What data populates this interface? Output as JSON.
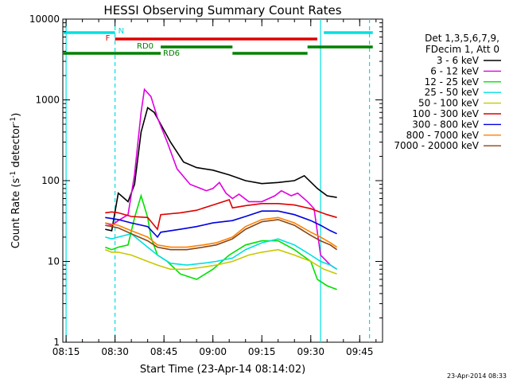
{
  "chart_data": {
    "type": "line",
    "title": "HESSI Observing Summary Count Rates",
    "xlabel": "Start Time (23-Apr-14 08:14:02)",
    "ylabel_main": "Count Rate (s",
    "ylabel_sup1": "-1",
    "ylabel_mid": " detector",
    "ylabel_sup2": "-1",
    "ylabel_end": ")",
    "yscale": "log",
    "ylim": [
      1,
      10000
    ],
    "xlim": [
      "08:14",
      "09:52"
    ],
    "x_ticks": [
      "08:15",
      "08:30",
      "08:45",
      "09:00",
      "09:15",
      "09:30",
      "09:45"
    ],
    "y_ticks": [
      "1",
      "10",
      "100",
      "1000",
      "10000"
    ],
    "footer": "23-Apr-2014 08:33",
    "legend": {
      "header": [
        "Det 1,3,5,6,7,9,",
        "FDecim 1, Att 0"
      ],
      "placement": "right"
    },
    "series": [
      {
        "name": "3 - 6 keV",
        "color": "#000000",
        "points": [
          [
            "08:27",
            25
          ],
          [
            "08:29",
            24
          ],
          [
            "08:31",
            70
          ],
          [
            "08:34",
            55
          ],
          [
            "08:36",
            90
          ],
          [
            "08:38",
            400
          ],
          [
            "08:40",
            800
          ],
          [
            "08:42",
            700
          ],
          [
            "08:44",
            500
          ],
          [
            "08:47",
            300
          ],
          [
            "08:51",
            170
          ],
          [
            "08:55",
            145
          ],
          [
            "09:00",
            135
          ],
          [
            "09:05",
            118
          ],
          [
            "09:10",
            100
          ],
          [
            "09:15",
            92
          ],
          [
            "09:20",
            95
          ],
          [
            "09:25",
            100
          ],
          [
            "09:28",
            115
          ],
          [
            "09:32",
            80
          ],
          [
            "09:35",
            65
          ],
          [
            "09:38",
            62
          ]
        ]
      },
      {
        "name": "6 - 12 keV",
        "color": "#e000e0",
        "points": [
          [
            "08:27",
            30
          ],
          [
            "08:29",
            28
          ],
          [
            "08:31",
            32
          ],
          [
            "08:34",
            38
          ],
          [
            "08:36",
            120
          ],
          [
            "08:38",
            700
          ],
          [
            "08:39",
            1350
          ],
          [
            "08:41",
            1100
          ],
          [
            "08:43",
            600
          ],
          [
            "08:46",
            300
          ],
          [
            "08:49",
            140
          ],
          [
            "08:53",
            90
          ],
          [
            "08:58",
            75
          ],
          [
            "09:00",
            80
          ],
          [
            "09:02",
            95
          ],
          [
            "09:04",
            70
          ],
          [
            "09:06",
            60
          ],
          [
            "09:08",
            68
          ],
          [
            "09:11",
            55
          ],
          [
            "09:15",
            55
          ],
          [
            "09:19",
            65
          ],
          [
            "09:21",
            75
          ],
          [
            "09:24",
            65
          ],
          [
            "09:26",
            70
          ],
          [
            "09:29",
            55
          ],
          [
            "09:31",
            45
          ],
          [
            "09:33",
            12
          ],
          [
            "09:36",
            9
          ],
          [
            "09:38",
            8
          ]
        ]
      },
      {
        "name": "12 - 25 keV",
        "color": "#00e000",
        "points": [
          [
            "08:27",
            15
          ],
          [
            "08:29",
            14
          ],
          [
            "08:31",
            15
          ],
          [
            "08:34",
            16
          ],
          [
            "08:36",
            35
          ],
          [
            "08:38",
            65
          ],
          [
            "08:40",
            35
          ],
          [
            "08:41",
            20
          ],
          [
            "08:43",
            12
          ],
          [
            "08:46",
            10
          ],
          [
            "08:50",
            7
          ],
          [
            "08:55",
            6
          ],
          [
            "09:00",
            8
          ],
          [
            "09:05",
            12
          ],
          [
            "09:10",
            16
          ],
          [
            "09:15",
            18
          ],
          [
            "09:20",
            18
          ],
          [
            "09:25",
            14
          ],
          [
            "09:30",
            10
          ],
          [
            "09:32",
            6
          ],
          [
            "09:35",
            5
          ],
          [
            "09:38",
            4.5
          ]
        ]
      },
      {
        "name": "25 - 50 keV",
        "color": "#00e0e0",
        "points": [
          [
            "08:27",
            20
          ],
          [
            "08:29",
            19
          ],
          [
            "08:31",
            20
          ],
          [
            "08:35",
            22
          ],
          [
            "08:40",
            15
          ],
          [
            "08:43",
            12
          ],
          [
            "08:47",
            9.5
          ],
          [
            "08:52",
            9
          ],
          [
            "08:57",
            9.5
          ],
          [
            "09:01",
            10
          ],
          [
            "09:06",
            11
          ],
          [
            "09:10",
            14
          ],
          [
            "09:15",
            17
          ],
          [
            "09:20",
            19
          ],
          [
            "09:25",
            16
          ],
          [
            "09:30",
            12
          ],
          [
            "09:33",
            10
          ],
          [
            "09:36",
            9
          ],
          [
            "09:38",
            8
          ]
        ]
      },
      {
        "name": "50 - 100 keV",
        "color": "#c8c800",
        "points": [
          [
            "08:27",
            14
          ],
          [
            "08:29",
            13
          ],
          [
            "08:31",
            13
          ],
          [
            "08:35",
            12
          ],
          [
            "08:40",
            10
          ],
          [
            "08:43",
            9
          ],
          [
            "08:47",
            8
          ],
          [
            "08:52",
            8
          ],
          [
            "08:57",
            8.5
          ],
          [
            "09:01",
            9
          ],
          [
            "09:06",
            10
          ],
          [
            "09:11",
            12
          ],
          [
            "09:15",
            13
          ],
          [
            "09:20",
            14
          ],
          [
            "09:25",
            12
          ],
          [
            "09:30",
            10
          ],
          [
            "09:34",
            8
          ],
          [
            "09:38",
            7
          ]
        ]
      },
      {
        "name": "100 - 300 keV",
        "color": "#e00000",
        "points": [
          [
            "08:27",
            40
          ],
          [
            "08:29",
            41
          ],
          [
            "08:31",
            40
          ],
          [
            "08:35",
            36
          ],
          [
            "08:40",
            35
          ],
          [
            "08:43",
            25
          ],
          [
            "08:44",
            38
          ],
          [
            "08:50",
            40
          ],
          [
            "08:55",
            43
          ],
          [
            "09:00",
            50
          ],
          [
            "09:05",
            58
          ],
          [
            "09:06",
            46
          ],
          [
            "09:10",
            49
          ],
          [
            "09:15",
            52
          ],
          [
            "09:20",
            52
          ],
          [
            "09:25",
            50
          ],
          [
            "09:30",
            45
          ],
          [
            "09:32",
            42
          ],
          [
            "09:35",
            38
          ],
          [
            "09:38",
            35
          ]
        ]
      },
      {
        "name": "300 - 800 keV",
        "color": "#0000e0",
        "points": [
          [
            "08:27",
            35
          ],
          [
            "08:29",
            34
          ],
          [
            "08:31",
            33
          ],
          [
            "08:35",
            30
          ],
          [
            "08:40",
            27
          ],
          [
            "08:43",
            20
          ],
          [
            "08:44",
            23
          ],
          [
            "08:50",
            25
          ],
          [
            "08:55",
            27
          ],
          [
            "09:00",
            30
          ],
          [
            "09:06",
            32
          ],
          [
            "09:10",
            36
          ],
          [
            "09:15",
            42
          ],
          [
            "09:20",
            42
          ],
          [
            "09:25",
            38
          ],
          [
            "09:30",
            32
          ],
          [
            "09:33",
            28
          ],
          [
            "09:36",
            24
          ],
          [
            "09:38",
            22
          ]
        ]
      },
      {
        "name": "800 - 7000 keV",
        "color": "#ff8000",
        "points": [
          [
            "08:27",
            30
          ],
          [
            "08:29",
            29
          ],
          [
            "08:31",
            28
          ],
          [
            "08:35",
            24
          ],
          [
            "08:40",
            20
          ],
          [
            "08:43",
            16
          ],
          [
            "08:47",
            15
          ],
          [
            "08:52",
            15
          ],
          [
            "08:57",
            16
          ],
          [
            "09:01",
            17
          ],
          [
            "09:06",
            20
          ],
          [
            "09:10",
            27
          ],
          [
            "09:15",
            33
          ],
          [
            "09:20",
            35
          ],
          [
            "09:25",
            30
          ],
          [
            "09:30",
            23
          ],
          [
            "09:33",
            20
          ],
          [
            "09:36",
            17
          ],
          [
            "09:38",
            15
          ]
        ]
      },
      {
        "name": "7000 - 20000 keV",
        "color": "#8b4513",
        "points": [
          [
            "08:27",
            28
          ],
          [
            "08:29",
            27
          ],
          [
            "08:31",
            26
          ],
          [
            "08:35",
            22
          ],
          [
            "08:40",
            18
          ],
          [
            "08:43",
            15
          ],
          [
            "08:47",
            14
          ],
          [
            "08:52",
            14
          ],
          [
            "08:57",
            15
          ],
          [
            "09:01",
            16
          ],
          [
            "09:06",
            19
          ],
          [
            "09:10",
            25
          ],
          [
            "09:15",
            31
          ],
          [
            "09:20",
            33
          ],
          [
            "09:25",
            28
          ],
          [
            "09:30",
            21
          ],
          [
            "09:33",
            18
          ],
          [
            "09:36",
            16
          ],
          [
            "09:38",
            14
          ]
        ]
      }
    ],
    "flag_bars": [
      {
        "label": "N",
        "color": "#00e0e0",
        "segments": [
          [
            "08:14",
            "08:30"
          ],
          [
            "09:34",
            "09:49"
          ]
        ]
      },
      {
        "label": "F",
        "color": "#e00000",
        "segments": [
          [
            "08:30",
            "09:32"
          ]
        ]
      },
      {
        "label": "RD0",
        "color": "#008000",
        "segments": [
          [
            "08:14",
            "08:44"
          ],
          [
            "08:44",
            "09:06"
          ],
          [
            "09:06",
            "09:29"
          ],
          [
            "09:29",
            "09:49"
          ]
        ]
      }
    ],
    "vertical_lines": [
      {
        "x": "08:15",
        "color": "#00e0e0",
        "style": "solid"
      },
      {
        "x": "08:30",
        "color": "#00e0e0",
        "style": "dashed"
      },
      {
        "x": "09:33",
        "color": "#00e0e0",
        "style": "solid"
      },
      {
        "x": "09:48",
        "color": "#00e0e0",
        "style": "dashed"
      }
    ],
    "flag_labels": {
      "rd0": "RD0",
      "rd6": "RD6"
    }
  }
}
